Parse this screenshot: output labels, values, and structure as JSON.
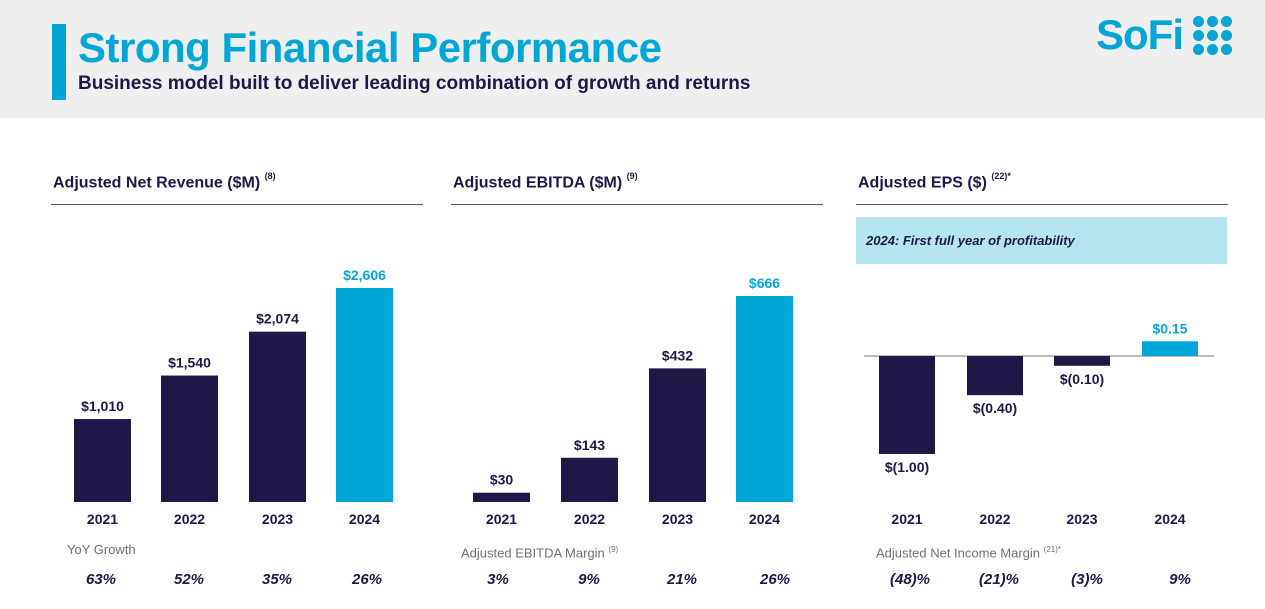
{
  "header": {
    "title": "Strong Financial Performance",
    "subtitle": "Business model built to deliver leading combination of growth and returns",
    "logo_text": "SoFi",
    "logo_icon": "sofi-dots-icon"
  },
  "colors": {
    "brand": "#00a6d5",
    "navy": "#1e1848",
    "banner": "#b5e6ef"
  },
  "panels": [
    {
      "title": "Adjusted Net Revenue ($M)",
      "footnote": "(8)",
      "metric_label": "YoY Growth",
      "metric_footnote": "",
      "metric_values": [
        "63%",
        "52%",
        "35%",
        "26%"
      ]
    },
    {
      "title": "Adjusted EBITDA ($M)",
      "footnote": "(9)",
      "metric_label": "Adjusted EBITDA Margin",
      "metric_footnote": "(9)",
      "metric_values": [
        "3%",
        "9%",
        "21%",
        "26%"
      ]
    },
    {
      "title": "Adjusted EPS ($)",
      "footnote": "(22)*",
      "banner": "2024: First full year of profitability",
      "metric_label": "Adjusted Net Income Margin",
      "metric_footnote": "(21)*",
      "metric_values": [
        "(48)%",
        "(21)%",
        "(3)%",
        "9%"
      ]
    }
  ],
  "chart_data": [
    {
      "type": "bar",
      "title": "Adjusted Net Revenue ($M)",
      "categories": [
        "2021",
        "2022",
        "2023",
        "2024"
      ],
      "values": [
        1010,
        1540,
        2074,
        2606
      ],
      "labels": [
        "$1,010",
        "$1,540",
        "$2,074",
        "$2,606"
      ],
      "highlight_index": 3
    },
    {
      "type": "bar",
      "title": "Adjusted EBITDA ($M)",
      "categories": [
        "2021",
        "2022",
        "2023",
        "2024"
      ],
      "values": [
        30,
        143,
        432,
        666
      ],
      "labels": [
        "$30",
        "$143",
        "$432",
        "$666"
      ],
      "highlight_index": 3
    },
    {
      "type": "bar",
      "title": "Adjusted EPS ($)",
      "categories": [
        "2021",
        "2022",
        "2023",
        "2024"
      ],
      "values": [
        -1.0,
        -0.4,
        -0.1,
        0.15
      ],
      "labels": [
        "$(1.00)",
        "$(0.40)",
        "$(0.10)",
        "$0.15"
      ],
      "highlight_index": 3
    }
  ]
}
